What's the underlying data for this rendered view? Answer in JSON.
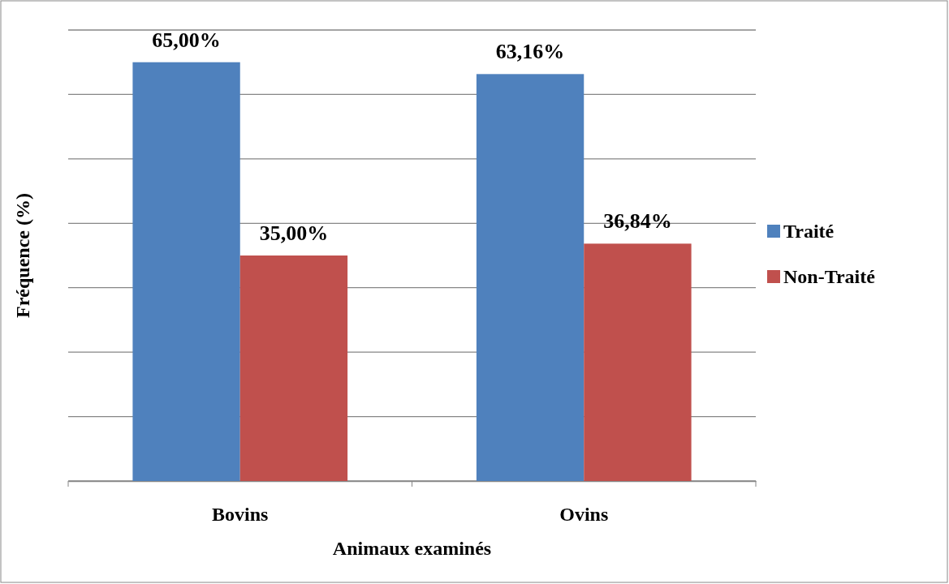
{
  "chart_data": {
    "type": "bar",
    "xlabel": "Animaux examinés",
    "ylabel": "Fréquence (%)",
    "categories": [
      "Bovins",
      "Ovins"
    ],
    "series": [
      {
        "name": "Traité",
        "color": "#4f81bd",
        "values": [
          65.0,
          63.16
        ],
        "value_labels": [
          "65,00%",
          "63,16%"
        ]
      },
      {
        "name": "Non-Traité",
        "color": "#c0504d",
        "values": [
          35.0,
          36.84
        ],
        "value_labels": [
          "35,00%",
          "36,84%"
        ]
      }
    ],
    "ylim": [
      0,
      70
    ],
    "yticks": [
      {
        "value": 0,
        "label": null
      },
      {
        "value": 10,
        "label": null
      },
      {
        "value": 20,
        "label": null
      },
      {
        "value": 30,
        "label": null
      },
      {
        "value": 40,
        "label": null
      },
      {
        "value": 50,
        "label": null
      },
      {
        "value": 60,
        "label": null
      },
      {
        "value": 70,
        "label": null
      }
    ],
    "grid": "y",
    "legend": "right",
    "tick_labels": "x"
  }
}
